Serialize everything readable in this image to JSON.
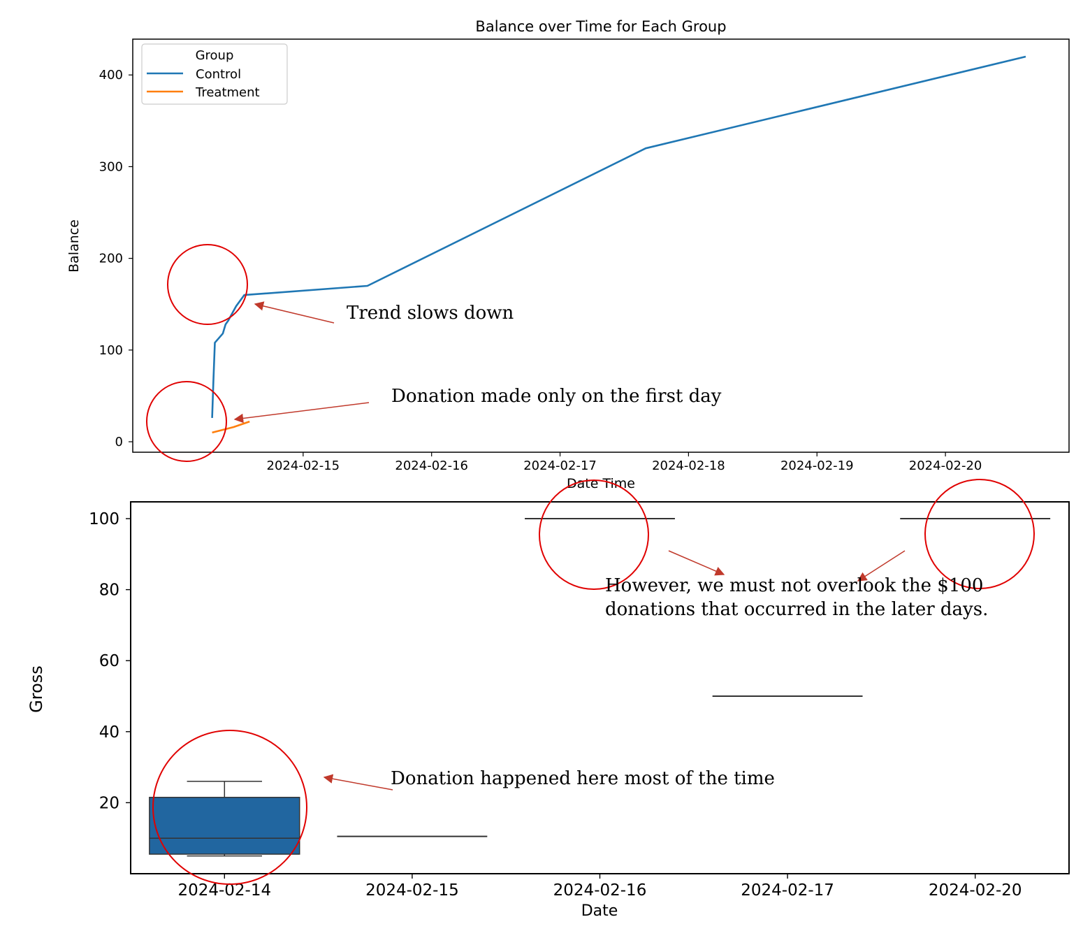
{
  "colors": {
    "control": "#1f77b4",
    "treatment": "#ff7f0e",
    "box_fill": "#2166a0",
    "annotation_circle": "#e00000",
    "annotation_arrow": "#c0392b",
    "axis": "#000000"
  },
  "chart_data": [
    {
      "type": "line",
      "title": "Balance over Time for Each Group",
      "xlabel": "Date Time",
      "ylabel": "Balance",
      "x_ticks": [
        "2024-02-15",
        "2024-02-16",
        "2024-02-17",
        "2024-02-18",
        "2024-02-19",
        "2024-02-20"
      ],
      "y_ticks": [
        0,
        100,
        200,
        300,
        400
      ],
      "xlim": [
        "2024-02-14 00:00",
        "2024-02-20 15:00"
      ],
      "ylim": [
        -10,
        440
      ],
      "legend": {
        "title": "Group",
        "placement": "top-left"
      },
      "series": [
        {
          "name": "Control",
          "color": "#1f77b4",
          "points": [
            {
              "x": "2024-02-14 07:00",
              "y": 26
            },
            {
              "x": "2024-02-14 07:15",
              "y": 68
            },
            {
              "x": "2024-02-14 07:30",
              "y": 108
            },
            {
              "x": "2024-02-14 09:00",
              "y": 118
            },
            {
              "x": "2024-02-14 09:30",
              "y": 128
            },
            {
              "x": "2024-02-14 10:00",
              "y": 132
            },
            {
              "x": "2024-02-14 11:30",
              "y": 148
            },
            {
              "x": "2024-02-14 13:00",
              "y": 160
            },
            {
              "x": "2024-02-15 12:00",
              "y": 170
            },
            {
              "x": "2024-02-17 16:00",
              "y": 320
            },
            {
              "x": "2024-02-20 15:00",
              "y": 420
            }
          ]
        },
        {
          "name": "Treatment",
          "color": "#ff7f0e",
          "points": [
            {
              "x": "2024-02-14 07:00",
              "y": 10
            },
            {
              "x": "2024-02-14 11:00",
              "y": 16
            },
            {
              "x": "2024-02-14 14:00",
              "y": 22
            }
          ]
        }
      ]
    },
    {
      "type": "box",
      "xlabel": "Date",
      "ylabel": "Gross",
      "categories": [
        "2024-02-14",
        "2024-02-15",
        "2024-02-16",
        "2024-02-17",
        "2024-02-20"
      ],
      "y_ticks": [
        20,
        40,
        60,
        80,
        100
      ],
      "ylim": [
        0,
        105
      ],
      "boxes": [
        {
          "category": "2024-02-14",
          "min": 5,
          "q1": 5.5,
          "median": 10,
          "q3": 21.5,
          "max": 26
        },
        {
          "category": "2024-02-15",
          "min": 10.5,
          "q1": 10.5,
          "median": 10.5,
          "q3": 10.5,
          "max": 10.5
        },
        {
          "category": "2024-02-16",
          "min": 100,
          "q1": 100,
          "median": 100,
          "q3": 100,
          "max": 100
        },
        {
          "category": "2024-02-17",
          "min": 50,
          "q1": 50,
          "median": 50,
          "q3": 50,
          "max": 50
        },
        {
          "category": "2024-02-20",
          "min": 100,
          "q1": 100,
          "median": 100,
          "q3": 100,
          "max": 100
        }
      ]
    }
  ],
  "annotations": {
    "trend": "Trend slows down",
    "first_day": "Donation made only on the first day",
    "later_days_line1": "However, we must not overlook the $100",
    "later_days_line2": "donations that occurred in the later days.",
    "most_time": "Donation happened here most of the time"
  }
}
